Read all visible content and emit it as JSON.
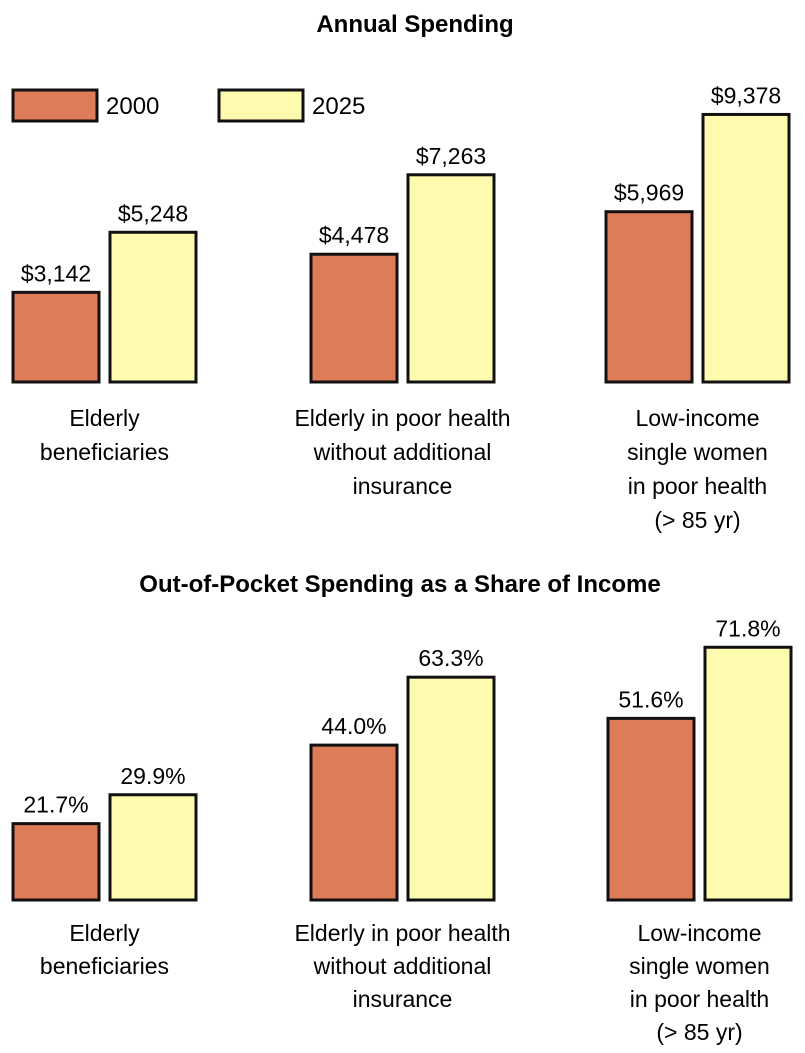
{
  "legend": [
    {
      "label": "2000",
      "color": "#de7b59"
    },
    {
      "label": "2025",
      "color": "#fefbae"
    }
  ],
  "chart_data": [
    {
      "type": "bar",
      "title": "Annual Spending",
      "categories": [
        [
          "Elderly",
          "beneficiaries"
        ],
        [
          "Elderly in poor health",
          "without additional",
          "insurance"
        ],
        [
          "Low-income",
          "single women",
          "in poor health",
          "(> 85 yr)"
        ]
      ],
      "series": [
        {
          "name": "2000",
          "values": [
            3142,
            4478,
            5969
          ],
          "labels": [
            "$3,142",
            "$4,478",
            "$5,969"
          ]
        },
        {
          "name": "2025",
          "values": [
            5248,
            7263,
            9378
          ],
          "labels": [
            "$5,248",
            "$7,263",
            "$9,378"
          ]
        }
      ],
      "legend": "top-left",
      "grid": false
    },
    {
      "type": "bar",
      "title": "Out-of-Pocket Spending as a Share of Income",
      "categories": [
        [
          "Elderly",
          "beneficiaries"
        ],
        [
          "Elderly in poor health",
          "without additional",
          "insurance"
        ],
        [
          "Low-income",
          "single women",
          "in poor health",
          "(> 85 yr)"
        ]
      ],
      "series": [
        {
          "name": "2000",
          "values": [
            21.7,
            44.0,
            51.6
          ],
          "labels": [
            "21.7%",
            "44.0%",
            "51.6%"
          ]
        },
        {
          "name": "2025",
          "values": [
            29.9,
            63.3,
            71.8
          ],
          "labels": [
            "29.9%",
            "63.3%",
            "71.8%"
          ]
        }
      ],
      "grid": false
    }
  ]
}
